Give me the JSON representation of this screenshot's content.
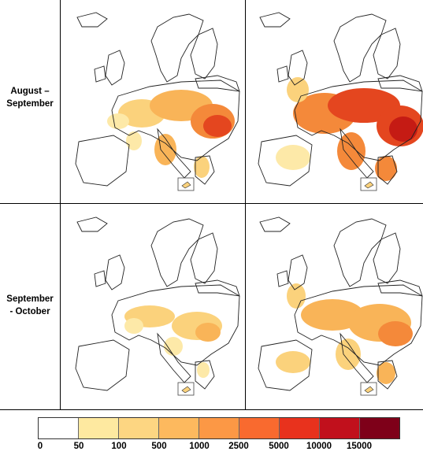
{
  "rows": [
    {
      "label_line1": "August –",
      "label_line2": "September"
    },
    {
      "label_line1": "September",
      "label_line2": "- October"
    }
  ],
  "legend": {
    "ticks": [
      "0",
      "50",
      "100",
      "500",
      "1000",
      "2500",
      "5000",
      "10000",
      "15000"
    ],
    "colors": [
      "#ffffff",
      "#fee9a0",
      "#fdd682",
      "#fdb95e",
      "#fc9845",
      "#f96a2f",
      "#e8321d",
      "#c1101c",
      "#7e0019"
    ]
  },
  "map_colors": {
    "low": "#fde9a8",
    "light": "#fbd27c",
    "mid": "#f9b458",
    "orange": "#f4893a",
    "red": "#e4461f",
    "dark": "#c51b14"
  }
}
